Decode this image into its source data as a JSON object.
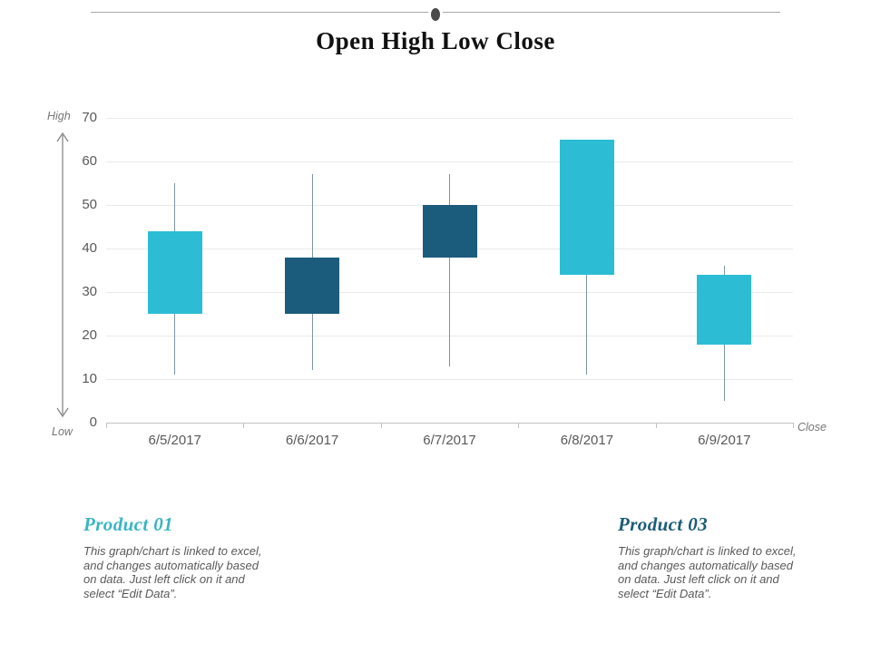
{
  "slide": {
    "title": "Open High Low Close"
  },
  "chart_data": {
    "type": "candlestick",
    "title": "Open High Low Close",
    "categories": [
      "6/5/2017",
      "6/6/2017",
      "6/7/2017",
      "6/8/2017",
      "6/9/2017"
    ],
    "series": [
      {
        "date": "6/5/2017",
        "open": 25,
        "high": 55,
        "low": 11,
        "close": 44,
        "direction": "up"
      },
      {
        "date": "6/6/2017",
        "open": 38,
        "high": 57,
        "low": 12,
        "close": 25,
        "direction": "down"
      },
      {
        "date": "6/7/2017",
        "open": 50,
        "high": 57,
        "low": 13,
        "close": 38,
        "direction": "down"
      },
      {
        "date": "6/8/2017",
        "open": 34,
        "high": 65,
        "low": 11,
        "close": 65,
        "direction": "up"
      },
      {
        "date": "6/9/2017",
        "open": 18,
        "high": 36,
        "low": 5,
        "close": 34,
        "direction": "up"
      }
    ],
    "yticks": [
      0,
      10,
      20,
      30,
      40,
      50,
      60,
      70
    ],
    "ylim": [
      0,
      70
    ],
    "grid": true,
    "legend": false,
    "annotations": {
      "y_axis_top": "High",
      "y_axis_bottom": "Low",
      "x_axis_right": "Close"
    },
    "colors": {
      "up_candle": "#2CBDD4",
      "down_candle": "#1B5B7B",
      "wick": "#7C95A5",
      "gridline": "#EAEAEA",
      "axis": "#C2C2C2"
    }
  },
  "sections": [
    {
      "heading": "Product 01",
      "heading_color": "#3BB4C4",
      "body_lines": [
        "This graph/chart is linked to excel,",
        "and changes automatically based",
        "on data. Just left click on it and",
        "select “Edit Data”."
      ]
    },
    {
      "heading": "Product 03",
      "heading_color": "#1D5C77",
      "body_lines": [
        "This graph/chart is linked to excel,",
        "and changes automatically based",
        "on data. Just left click on it and",
        "select “Edit Data”."
      ]
    }
  ]
}
